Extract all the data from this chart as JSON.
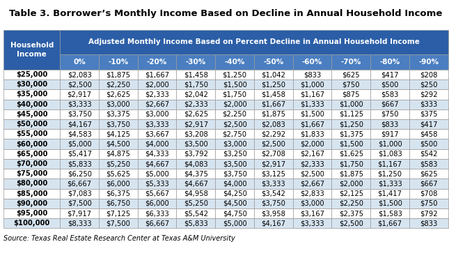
{
  "title": "Table 3. Borrower’s Monthly Income Based on Decline in Annual Household Income",
  "header_row1_label": "Household\nIncome",
  "header_row1_span": "Adjusted Monthly Income Based on Percent Decline in Annual Household Income",
  "col_headers": [
    "0%",
    "-10%",
    "-20%",
    "-30%",
    "-40%",
    "-50%",
    "-60%",
    "-70%",
    "-80%",
    "-90%"
  ],
  "row_labels": [
    "$25,000",
    "$30,000",
    "$35,000",
    "$40,000",
    "$45,000",
    "$50,000",
    "$55,000",
    "$60,000",
    "$65,000",
    "$70,000",
    "$75,000",
    "$80,000",
    "$85,000",
    "$90,000",
    "$95,000",
    "$100,000"
  ],
  "table_data": [
    [
      "$2,083",
      "$1,875",
      "$1,667",
      "$1,458",
      "$1,250",
      "$1,042",
      "$833",
      "$625",
      "$417",
      "$208"
    ],
    [
      "$2,500",
      "$2,250",
      "$2,000",
      "$1,750",
      "$1,500",
      "$1,250",
      "$1,000",
      "$750",
      "$500",
      "$250"
    ],
    [
      "$2,917",
      "$2,625",
      "$2,333",
      "$2,042",
      "$1,750",
      "$1,458",
      "$1,167",
      "$875",
      "$583",
      "$292"
    ],
    [
      "$3,333",
      "$3,000",
      "$2,667",
      "$2,333",
      "$2,000",
      "$1,667",
      "$1,333",
      "$1,000",
      "$667",
      "$333"
    ],
    [
      "$3,750",
      "$3,375",
      "$3,000",
      "$2,625",
      "$2,250",
      "$1,875",
      "$1,500",
      "$1,125",
      "$750",
      "$375"
    ],
    [
      "$4,167",
      "$3,750",
      "$3,333",
      "$2,917",
      "$2,500",
      "$2,083",
      "$1,667",
      "$1,250",
      "$833",
      "$417"
    ],
    [
      "$4,583",
      "$4,125",
      "$3,667",
      "$3,208",
      "$2,750",
      "$2,292",
      "$1,833",
      "$1,375",
      "$917",
      "$458"
    ],
    [
      "$5,000",
      "$4,500",
      "$4,000",
      "$3,500",
      "$3,000",
      "$2,500",
      "$2,000",
      "$1,500",
      "$1,000",
      "$500"
    ],
    [
      "$5,417",
      "$4,875",
      "$4,333",
      "$3,792",
      "$3,250",
      "$2,708",
      "$2,167",
      "$1,625",
      "$1,083",
      "$542"
    ],
    [
      "$5,833",
      "$5,250",
      "$4,667",
      "$4,083",
      "$3,500",
      "$2,917",
      "$2,333",
      "$1,750",
      "$1,167",
      "$583"
    ],
    [
      "$6,250",
      "$5,625",
      "$5,000",
      "$4,375",
      "$3,750",
      "$3,125",
      "$2,500",
      "$1,875",
      "$1,250",
      "$625"
    ],
    [
      "$6,667",
      "$6,000",
      "$5,333",
      "$4,667",
      "$4,000",
      "$3,333",
      "$2,667",
      "$2,000",
      "$1,333",
      "$667"
    ],
    [
      "$7,083",
      "$6,375",
      "$5,667",
      "$4,958",
      "$4,250",
      "$3,542",
      "$2,833",
      "$2,125",
      "$1,417",
      "$708"
    ],
    [
      "$7,500",
      "$6,750",
      "$6,000",
      "$5,250",
      "$4,500",
      "$3,750",
      "$3,000",
      "$2,250",
      "$1,500",
      "$750"
    ],
    [
      "$7,917",
      "$7,125",
      "$6,333",
      "$5,542",
      "$4,750",
      "$3,958",
      "$3,167",
      "$2,375",
      "$1,583",
      "$792"
    ],
    [
      "$8,333",
      "$7,500",
      "$6,667",
      "$5,833",
      "$5,000",
      "$4,167",
      "$3,333",
      "$2,500",
      "$1,667",
      "$833"
    ]
  ],
  "source": "Source: Texas Real Estate Research Center at Texas A&M University",
  "header_bg_dark": "#2B5EA7",
  "header_bg_light": "#4A7EC0",
  "header_text_color": "#FFFFFF",
  "row_alt_color": "#D6E4F0",
  "row_normal_color": "#FFFFFF",
  "border_color": "#999999",
  "title_fontsize": 9.5,
  "header_fontsize": 7.5,
  "cell_fontsize": 7.2,
  "source_fontsize": 7.0
}
